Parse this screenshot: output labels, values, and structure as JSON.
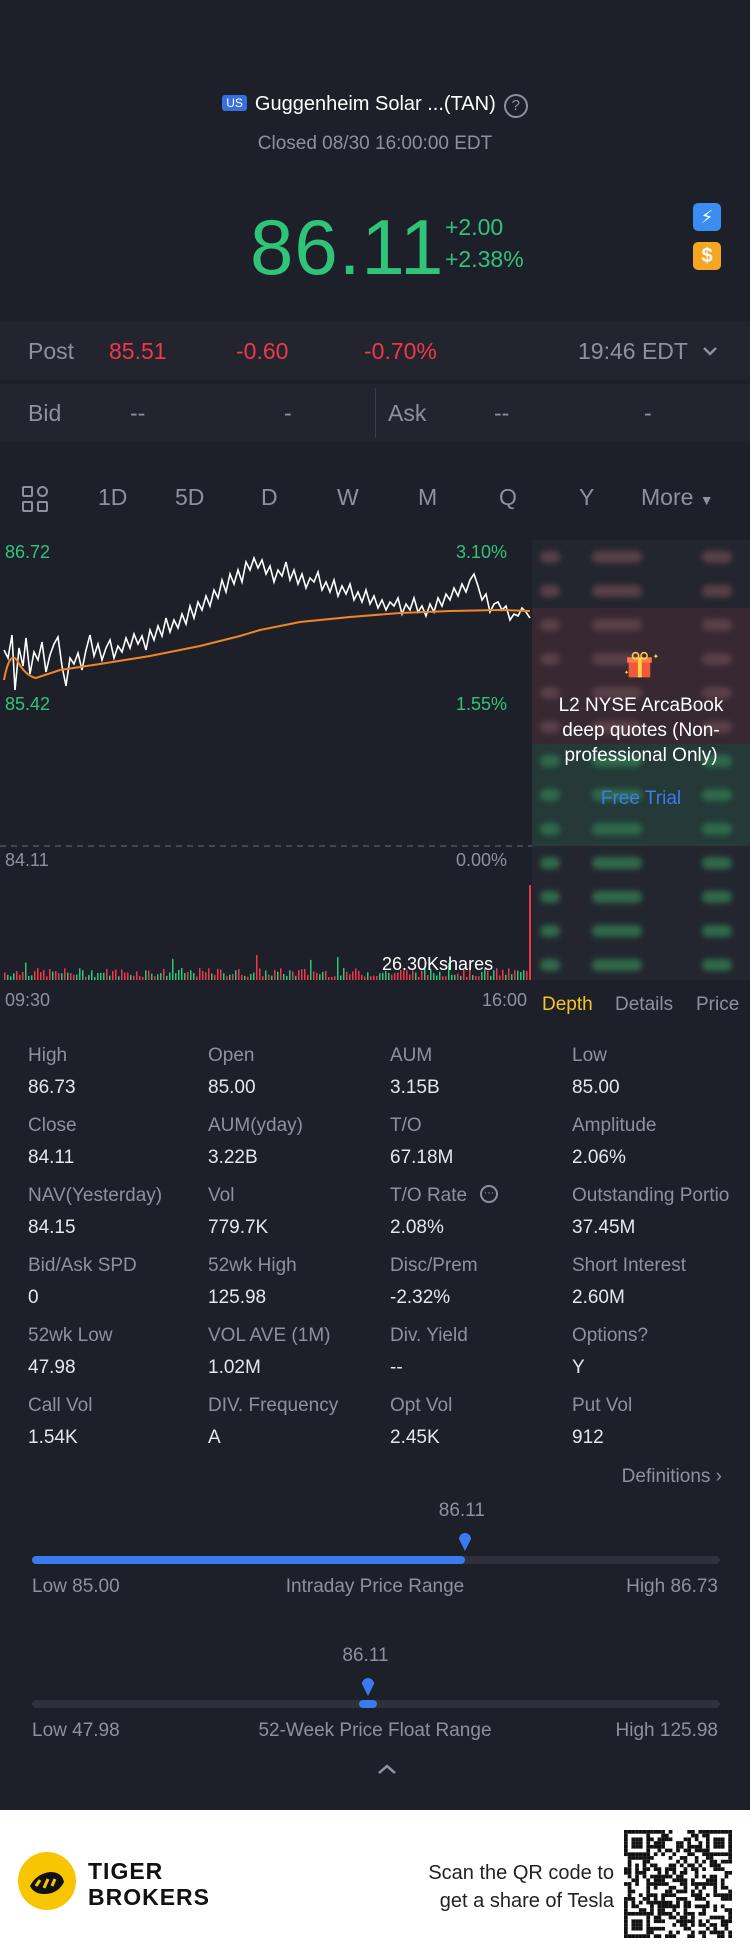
{
  "header": {
    "market_badge": "US",
    "title": "Guggenheim Solar ...(TAN)",
    "status": "Closed 08/30 16:00:00 EDT",
    "price": "86.11",
    "change_abs": "+2.00",
    "change_pct": "+2.38%",
    "colors": {
      "up": "#2fc47a",
      "down": "#f0384b",
      "accent": "#f5c623"
    }
  },
  "post": {
    "label": "Post",
    "price": "85.51",
    "change_abs": "-0.60",
    "change_pct": "-0.70%",
    "time": "19:46 EDT"
  },
  "bid": {
    "label": "Bid",
    "bid_price": "--",
    "bid_size": "-"
  },
  "ask": {
    "label": "Ask",
    "ask_price": "--",
    "ask_size": "-"
  },
  "tabs": [
    "1D",
    "5D",
    "D",
    "W",
    "M",
    "Q",
    "Y",
    "More"
  ],
  "active_tab": "1D",
  "chart": {
    "y_top": "86.72",
    "y_mid": "85.42",
    "y_bottom": "84.11",
    "pct_top": "3.10%",
    "pct_mid": "1.55%",
    "pct_bottom": "0.00%",
    "volume_label": "26.30Kshares",
    "time_start": "09:30",
    "time_end": "16:00"
  },
  "side_panel": {
    "promo": "L2 NYSE ArcaBook deep quotes (Non-professional Only)",
    "free_trial": "Free Trial"
  },
  "subtabs": [
    "Depth",
    "Details",
    "Price"
  ],
  "stats": [
    {
      "label": "High",
      "value": "86.73"
    },
    {
      "label": "Open",
      "value": "85.00"
    },
    {
      "label": "AUM",
      "value": "3.15B"
    },
    {
      "label": "Low",
      "value": "85.00"
    },
    {
      "label": "Close",
      "value": "84.11"
    },
    {
      "label": "AUM(yday)",
      "value": "3.22B"
    },
    {
      "label": "T/O",
      "value": "67.18M"
    },
    {
      "label": "Amplitude",
      "value": "2.06%"
    },
    {
      "label": "NAV(Yesterday)",
      "value": "84.15"
    },
    {
      "label": "Vol",
      "value": "779.7K"
    },
    {
      "label": "T/O Rate",
      "value": "2.08%"
    },
    {
      "label": "Outstanding Portio",
      "value": "37.45M"
    },
    {
      "label": "Bid/Ask SPD",
      "value": "0"
    },
    {
      "label": "52wk High",
      "value": "125.98"
    },
    {
      "label": "Disc/Prem",
      "value": "-2.32%"
    },
    {
      "label": "Short Interest",
      "value": "2.60M"
    },
    {
      "label": "52wk Low",
      "value": "47.98"
    },
    {
      "label": "VOL AVE (1M)",
      "value": "1.02M"
    },
    {
      "label": "Div. Yield",
      "value": "--"
    },
    {
      "label": "Options?",
      "value": "Y"
    },
    {
      "label": "Call Vol",
      "value": "1.54K"
    },
    {
      "label": "DIV. Frequency",
      "value": "A"
    },
    {
      "label": "Opt Vol",
      "value": "2.45K"
    },
    {
      "label": "Put Vol",
      "value": "912"
    }
  ],
  "definitions": "Definitions",
  "intraday": {
    "current": "86.11",
    "low": "Low 85.00",
    "title": "Intraday Price Range",
    "high": "High 86.73",
    "fraction": 0.629
  },
  "week52": {
    "current": "86.11",
    "low": "Low 47.98",
    "title": "52-Week Price Float Range",
    "high": "High 125.98",
    "fraction": 0.489
  },
  "footer": {
    "brand_line1": "TIGER",
    "brand_line2": "BROKERS",
    "scan_line1": "Scan the QR code to",
    "scan_line2": "get a share of Tesla"
  }
}
